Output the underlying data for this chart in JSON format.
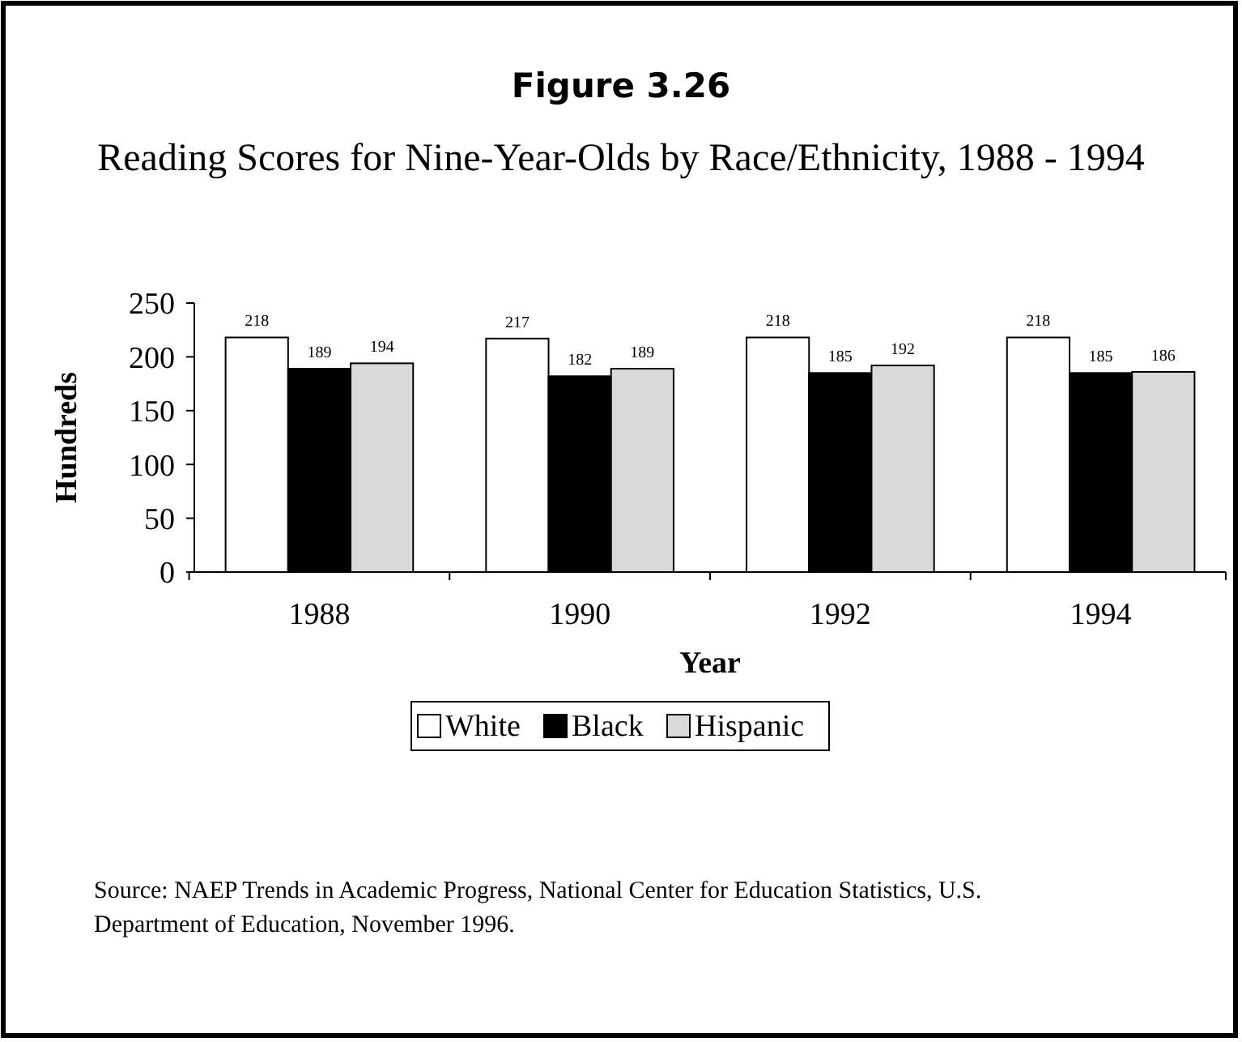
{
  "chart_data": {
    "type": "bar",
    "title": "Figure 3.26",
    "subtitle": "Reading Scores for Nine-Year-Olds by Race/Ethnicity, 1988 - 1994",
    "xlabel": "Year",
    "ylabel": "Hundreds",
    "categories": [
      "1988",
      "1990",
      "1992",
      "1994"
    ],
    "series": [
      {
        "name": "White",
        "color": "#ffffff",
        "values": [
          218,
          217,
          218,
          218
        ]
      },
      {
        "name": "Black",
        "color": "#000000",
        "values": [
          189,
          182,
          185,
          185
        ]
      },
      {
        "name": "Hispanic",
        "color": "#d9d9d9",
        "values": [
          194,
          189,
          192,
          186
        ]
      }
    ],
    "ylim": [
      0,
      250
    ],
    "yticks": [
      0,
      50,
      100,
      150,
      200,
      250
    ],
    "data_labels": true,
    "legend": "bottom",
    "annotations": [
      "Source: NAEP Trends in Academic Progress, National Center for Education Statistics, U.S. Department of Education, November 1996."
    ]
  }
}
